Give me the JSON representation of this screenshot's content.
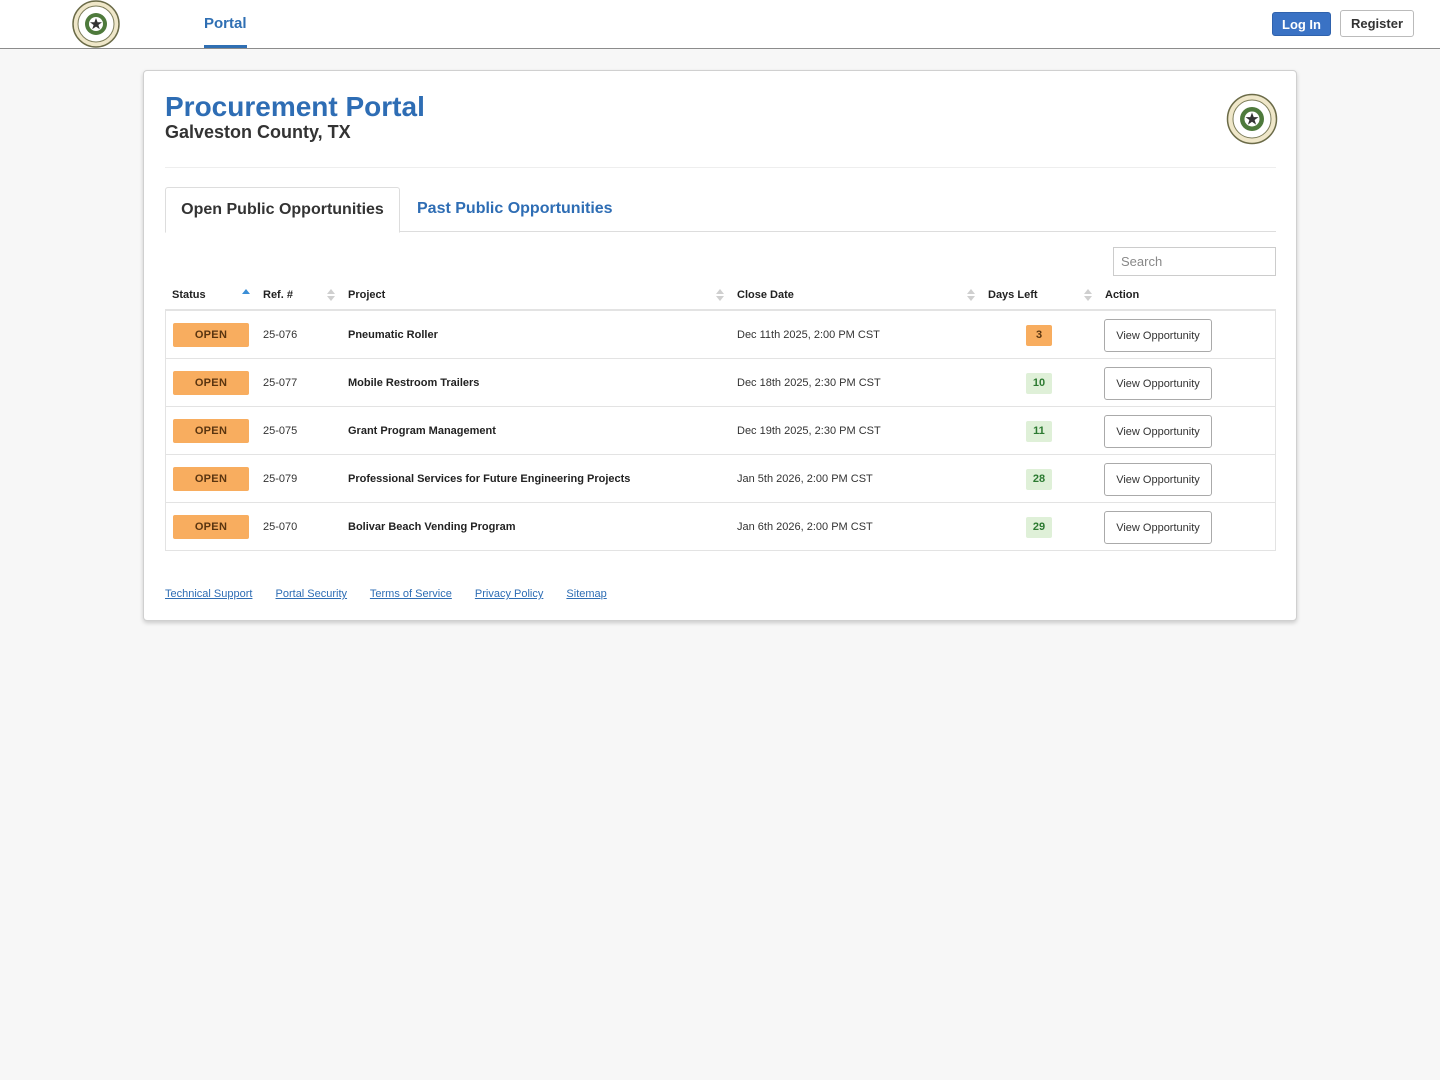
{
  "nav": {
    "portal_label": "Portal",
    "login_label": "Log In",
    "register_label": "Register"
  },
  "header": {
    "title": "Procurement Portal",
    "subtitle": "Galveston County, TX"
  },
  "tabs": [
    {
      "label": "Open Public Opportunities",
      "active": true
    },
    {
      "label": "Past Public Opportunities",
      "active": false
    }
  ],
  "search": {
    "placeholder": "Search",
    "value": ""
  },
  "table": {
    "columns": [
      "Status",
      "Ref. #",
      "Project",
      "Close Date",
      "Days Left",
      "Action"
    ],
    "rows": [
      {
        "status": "OPEN",
        "ref": "25-076",
        "project": "Pneumatic Roller",
        "close_date": "Dec 11th 2025, 2:00 PM CST",
        "days_left": "3",
        "action": "View Opportunity"
      },
      {
        "status": "OPEN",
        "ref": "25-077",
        "project": "Mobile Restroom Trailers",
        "close_date": "Dec 18th 2025, 2:30 PM CST",
        "days_left": "10",
        "action": "View Opportunity"
      },
      {
        "status": "OPEN",
        "ref": "25-075",
        "project": "Grant Program Management",
        "close_date": "Dec 19th 2025, 2:30 PM CST",
        "days_left": "11",
        "action": "View Opportunity"
      },
      {
        "status": "OPEN",
        "ref": "25-079",
        "project": "Professional Services for Future Engineering Projects",
        "close_date": "Jan 5th 2026, 2:00 PM CST",
        "days_left": "28",
        "action": "View Opportunity"
      },
      {
        "status": "OPEN",
        "ref": "25-070",
        "project": "Bolivar Beach Vending Program",
        "close_date": "Jan 6th 2026, 2:00 PM CST",
        "days_left": "29",
        "action": "View Opportunity"
      }
    ]
  },
  "footer": {
    "links": [
      "Technical Support",
      "Portal Security",
      "Terms of Service",
      "Privacy Policy",
      "Sitemap"
    ]
  },
  "colors": {
    "brand_blue": "#2e6db4",
    "open_badge": "#f8ad5f",
    "days_ok_bg": "#dff0d8",
    "days_ok_text": "#2c7a31"
  },
  "icons": {
    "seal": "state-of-texas-seal-icon",
    "sort": "sort-arrows-icon"
  }
}
